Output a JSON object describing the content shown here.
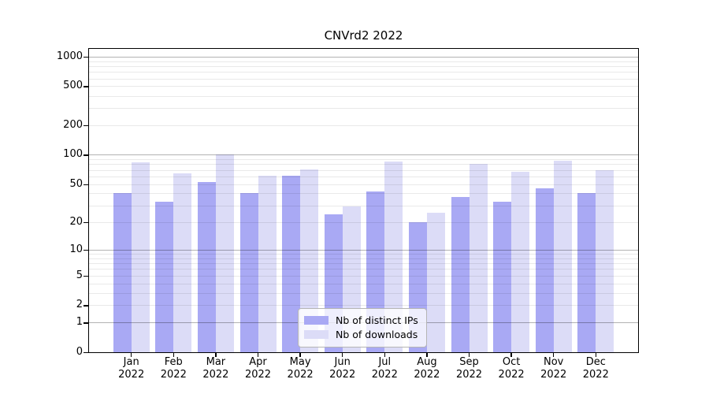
{
  "chart_data": {
    "type": "bar",
    "title": "CNVrd2 2022",
    "categories": [
      {
        "month": "Jan",
        "year": "2022"
      },
      {
        "month": "Feb",
        "year": "2022"
      },
      {
        "month": "Mar",
        "year": "2022"
      },
      {
        "month": "Apr",
        "year": "2022"
      },
      {
        "month": "May",
        "year": "2022"
      },
      {
        "month": "Jun",
        "year": "2022"
      },
      {
        "month": "Jul",
        "year": "2022"
      },
      {
        "month": "Aug",
        "year": "2022"
      },
      {
        "month": "Sep",
        "year": "2022"
      },
      {
        "month": "Oct",
        "year": "2022"
      },
      {
        "month": "Nov",
        "year": "2022"
      },
      {
        "month": "Dec",
        "year": "2022"
      }
    ],
    "series": [
      {
        "name": "Nb of distinct IPs",
        "key": "distinct-ips",
        "color": "#a9a9f4",
        "values": [
          40,
          33,
          52,
          40,
          61,
          24,
          42,
          20,
          37,
          33,
          45,
          40
        ]
      },
      {
        "name": "Nb of downloads",
        "key": "downloads",
        "color": "#dcdcf7",
        "values": [
          84,
          65,
          100,
          61,
          71,
          29,
          85,
          25,
          80,
          67,
          87,
          70
        ]
      }
    ],
    "yscale": "log1p",
    "ylim": [
      0,
      1200
    ],
    "yticks": [
      {
        "label": "1000",
        "value": 1000,
        "major": true
      },
      {
        "label": "500",
        "value": 500,
        "major": false
      },
      {
        "label": "200",
        "value": 200,
        "major": false
      },
      {
        "label": "100",
        "value": 100,
        "major": true
      },
      {
        "label": "50",
        "value": 50,
        "major": false
      },
      {
        "label": "20",
        "value": 20,
        "major": false
      },
      {
        "label": "10",
        "value": 10,
        "major": true
      },
      {
        "label": "5",
        "value": 5,
        "major": false
      },
      {
        "label": "2",
        "value": 2,
        "major": false
      },
      {
        "label": "1",
        "value": 1,
        "major": true
      },
      {
        "label": "0",
        "value": 0,
        "major": false
      }
    ],
    "minor_grid_values": [
      2,
      3,
      4,
      5,
      6,
      7,
      8,
      9,
      20,
      30,
      40,
      50,
      60,
      70,
      80,
      90,
      200,
      300,
      400,
      500,
      600,
      700,
      800,
      900
    ],
    "major_grid_values": [
      1,
      10,
      100,
      1000
    ],
    "grid": true,
    "legend_position": "lower center",
    "colors": {
      "major_grid_over_white": "#b3b3b3",
      "minor_grid_over_white": "#e9e9e9",
      "axis": "#000000",
      "background": "#ffffff"
    }
  }
}
